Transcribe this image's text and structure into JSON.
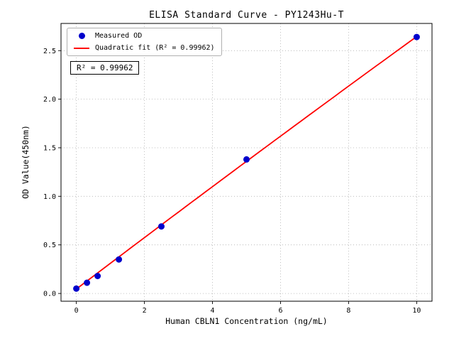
{
  "chart_data": {
    "type": "scatter",
    "title": "ELISA Standard Curve - PY1243Hu-T",
    "xlabel": "Human CBLN1 Concentration (ng/mL)",
    "ylabel": "OD Value(450nm)",
    "xlim": [
      -0.45,
      10.45
    ],
    "ylim": [
      -0.08,
      2.78
    ],
    "xticks": [
      0,
      2,
      4,
      6,
      8,
      10
    ],
    "xtick_labels": [
      "0",
      "2",
      "4",
      "6",
      "8",
      "10"
    ],
    "yticks": [
      0,
      0.5,
      1,
      1.5,
      2,
      2.5
    ],
    "ytick_labels": [
      "0.0",
      "0.5",
      "1.0",
      "1.5",
      "2.0",
      "2.5"
    ],
    "grid": true,
    "grid_color": "#b0b0b0",
    "legend_position": "upper-left",
    "annotation": "R² = 0.99962",
    "series": [
      {
        "name": "Measured OD",
        "type": "scatter",
        "color": "#0000cc",
        "marker": "circle",
        "x": [
          0,
          0.313,
          0.625,
          1.25,
          2.5,
          5,
          10
        ],
        "y": [
          0.05,
          0.11,
          0.18,
          0.35,
          0.69,
          1.38,
          2.64
        ]
      },
      {
        "name": "Quadratic fit (R² = 0.99962)",
        "type": "line",
        "color": "#ff0000",
        "r_squared": 0.99962,
        "fit": {
          "a": -0.0006,
          "b": 0.266,
          "c": 0.045,
          "x_range": [
            0,
            10
          ]
        }
      }
    ]
  }
}
